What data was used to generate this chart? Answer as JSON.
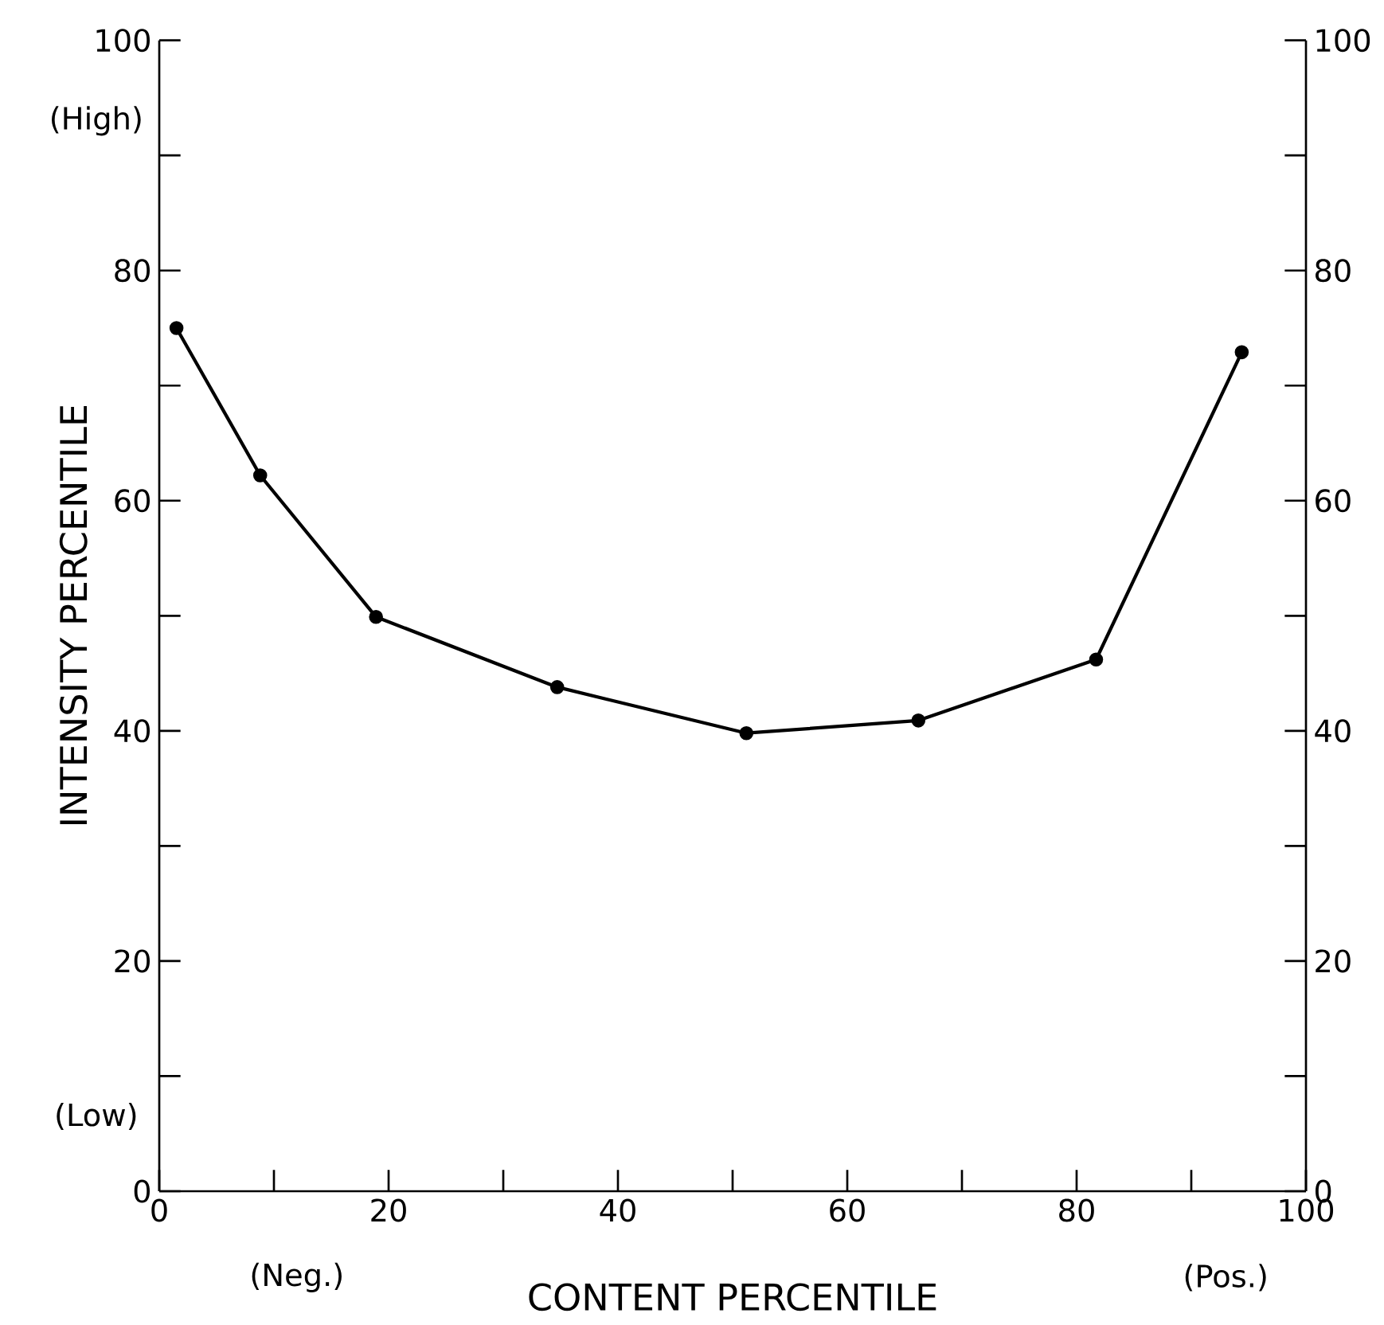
{
  "chart_data": {
    "type": "line",
    "xlabel": "CONTENT PERCENTILE",
    "ylabel": "INTENSITY PERCENTILE",
    "x": [
      1.5,
      8.8,
      18.9,
      34.7,
      51.2,
      66.2,
      81.7,
      94.4
    ],
    "series": [
      {
        "color": "#000000",
        "values": [
          75,
          62.2,
          49.9,
          43.8,
          39.8,
          40.9,
          46.2,
          72.9
        ]
      }
    ],
    "marker": "circle",
    "line_style": "solid",
    "grid": false,
    "legend": false,
    "xlim": [
      0,
      100
    ],
    "ylim": [
      0,
      100
    ],
    "y2lim": [
      0,
      100
    ],
    "xticks": [
      0,
      {
        "value": 10,
        "label": null
      },
      20,
      {
        "value": 30,
        "label": null
      },
      40,
      {
        "value": 50,
        "label": null
      },
      60,
      {
        "value": 70,
        "label": null
      },
      80,
      {
        "value": 90,
        "label": null
      },
      100
    ],
    "yticks": [
      0,
      {
        "value": 10,
        "label": null
      },
      20,
      {
        "value": 30,
        "label": null
      },
      40,
      {
        "value": 50,
        "label": null
      },
      60,
      {
        "value": 70,
        "label": null
      },
      80,
      {
        "value": 90,
        "label": null
      },
      100
    ],
    "y2ticks": [
      0,
      {
        "value": 10,
        "label": null
      },
      20,
      {
        "value": 30,
        "label": null
      },
      40,
      {
        "value": 50,
        "label": null
      },
      60,
      {
        "value": 70,
        "label": null
      },
      80,
      {
        "value": 90,
        "label": null
      },
      100
    ],
    "annotations": [
      "(High)",
      "(Low)",
      "(Neg.)",
      "(Pos.)"
    ]
  }
}
